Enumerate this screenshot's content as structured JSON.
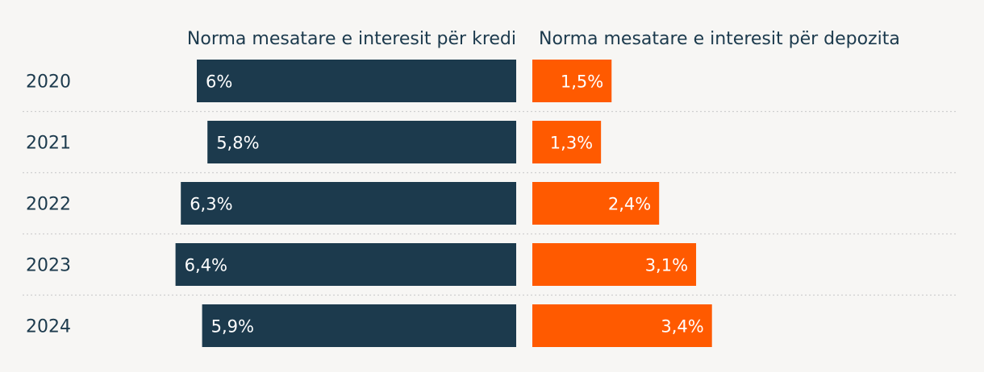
{
  "chart_data": {
    "type": "bar",
    "categories": [
      "2020",
      "2021",
      "2022",
      "2023",
      "2024"
    ],
    "series": [
      {
        "name": "Norma mesatare e interesit për kredi",
        "values": [
          6.0,
          5.8,
          6.3,
          6.4,
          5.9
        ],
        "labels": [
          "6%",
          "5,8%",
          "6,3%",
          "6,4%",
          "5,9%"
        ],
        "color": "#1c3a4d"
      },
      {
        "name": "Norma mesatare e interesit për depozita",
        "values": [
          1.5,
          1.3,
          2.4,
          3.1,
          3.4
        ],
        "labels": [
          "1,5%",
          "1,3%",
          "2,4%",
          "3,1%",
          "3,4%"
        ],
        "color": "#ff5a00"
      }
    ],
    "grid": false,
    "legend": "top"
  }
}
